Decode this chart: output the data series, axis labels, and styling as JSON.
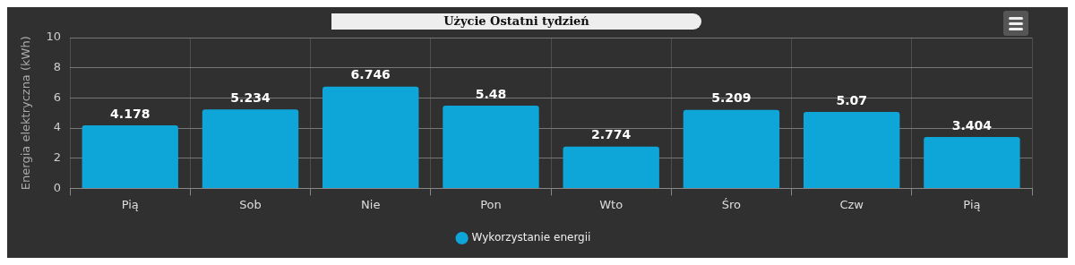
{
  "chart_data": {
    "type": "bar",
    "title": "Użycie Ostatni tydzień",
    "ylabel": "Energia elektryczna (kWh)",
    "categories": [
      "Pią",
      "Sob",
      "Nie",
      "Pon",
      "Wto",
      "Śro",
      "Czw",
      "Pią"
    ],
    "series": [
      {
        "name": "Wykorzystanie energii",
        "color": "#0ea5d8",
        "values": [
          4.178,
          5.234,
          6.746,
          5.48,
          2.774,
          5.209,
          5.07,
          3.404
        ]
      }
    ],
    "ylim": [
      0,
      10
    ],
    "yticks": [
      0,
      2,
      4,
      6,
      8,
      10
    ],
    "grid": true,
    "legend": "bottom",
    "data_labels": true
  }
}
